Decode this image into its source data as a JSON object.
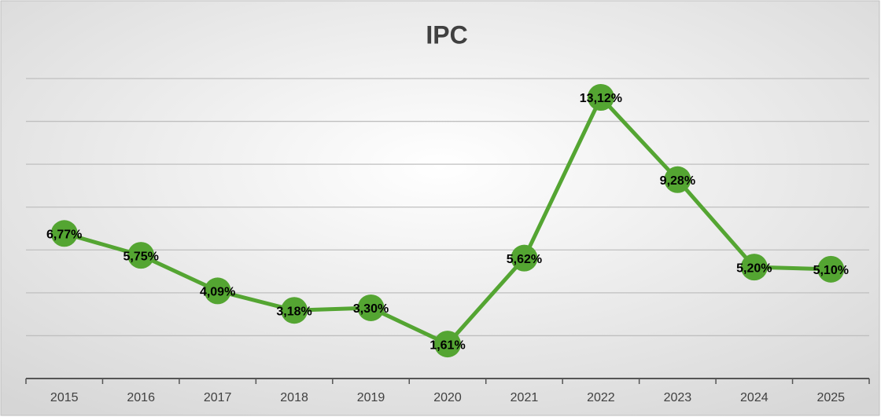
{
  "chart_data": {
    "type": "line",
    "title": "IPC",
    "categories": [
      "2015",
      "2016",
      "2017",
      "2018",
      "2019",
      "2020",
      "2021",
      "2022",
      "2023",
      "2024",
      "2025"
    ],
    "series": [
      {
        "name": "IPC",
        "color": "#54a532",
        "values": [
          6.77,
          5.75,
          4.09,
          3.18,
          3.3,
          1.61,
          5.62,
          13.12,
          9.28,
          5.2,
          5.1
        ],
        "value_labels": [
          "6,77%",
          "5,75%",
          "4,09%",
          "3,18%",
          "3,30%",
          "1,61%",
          "5,62%",
          "13,12%",
          "9,28%",
          "5,20%",
          "5,10%"
        ]
      }
    ],
    "ylim": [
      0,
      14
    ],
    "yticks": [
      0,
      2,
      4,
      6,
      8,
      10,
      12,
      14
    ],
    "grid": true
  }
}
